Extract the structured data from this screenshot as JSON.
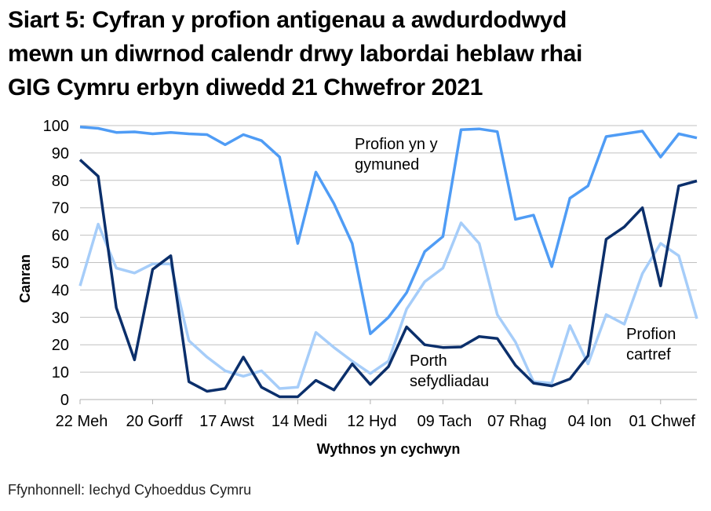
{
  "title_lines": [
    "Siart 5: Cyfran y profion antigenau a awdurdodwyd",
    "mewn un diwrnod calendr drwy labordai heblaw rhai",
    "GIG Cymru erbyn diwedd 21 Chwefror 2021"
  ],
  "source": "Ffynhonnell: Iechyd Cyhoeddus Cymru",
  "chart_data": {
    "type": "line",
    "title": "Siart 5: Cyfran y profion antigenau a awdurdodwyd mewn un diwrnod calendr drwy labordai heblaw rhai GIG Cymru erbyn diwedd 21 Chwefror 2021",
    "xlabel": "Wythnos yn cychwyn",
    "ylabel": "Canran",
    "ylim": [
      0,
      100
    ],
    "yticks": [
      0,
      10,
      20,
      30,
      40,
      50,
      60,
      70,
      80,
      90,
      100
    ],
    "grid": true,
    "legend": "inline annotations",
    "x_tick_labels": [
      "22 Meh",
      "20 Gorff",
      "17 Awst",
      "14 Medi",
      "12 Hyd",
      "09 Tach",
      "07 Rhag",
      "04 Ion",
      "01 Chwef"
    ],
    "x_tick_every": 4,
    "n_points": 35,
    "series": [
      {
        "name": "Profion yn y gymuned",
        "color": "#4f9cf5",
        "values": [
          99.5,
          99,
          97.5,
          97.7,
          97,
          97.5,
          97,
          96.7,
          93,
          96.7,
          94.5,
          88.5,
          57,
          83,
          71.5,
          57,
          24,
          30,
          39,
          54,
          59.5,
          98.5,
          98.8,
          97.8,
          65.8,
          67.3,
          48.5,
          73.5,
          78,
          96,
          97,
          98,
          88.5,
          97,
          95.5
        ]
      },
      {
        "name": "Porth sefydliadau",
        "color": "#0b2f6b",
        "values": [
          87.5,
          81.5,
          33.5,
          14.5,
          47.5,
          52.5,
          6.5,
          3,
          4,
          15.5,
          4.5,
          1,
          1,
          7,
          3.5,
          13,
          5.5,
          12,
          26.5,
          20,
          19,
          19.2,
          23,
          22.3,
          12.5,
          6,
          5,
          7.5,
          16,
          58.5,
          63,
          70,
          41.5,
          78,
          79.8
        ]
      },
      {
        "name": "Profion cartref",
        "color": "#a6cdf9",
        "values": [
          41.5,
          64,
          48,
          46.2,
          49.5,
          49.5,
          21.5,
          15.5,
          10.5,
          8.5,
          10.5,
          4,
          4.5,
          24.5,
          19,
          14,
          9.5,
          14,
          33,
          43,
          48,
          64.5,
          57,
          31,
          21,
          6.5,
          6,
          27,
          13,
          31,
          27.5,
          46,
          57,
          52.5,
          29.5
        ]
      }
    ],
    "annotations": [
      {
        "lines": [
          "Profion yn y",
          "gymuned"
        ],
        "series": "Profion yn y gymuned"
      },
      {
        "lines": [
          "Porth",
          "sefydliadau"
        ],
        "series": "Porth sefydliadau"
      },
      {
        "lines": [
          "Profion",
          "cartref"
        ],
        "series": "Profion cartref"
      }
    ]
  }
}
